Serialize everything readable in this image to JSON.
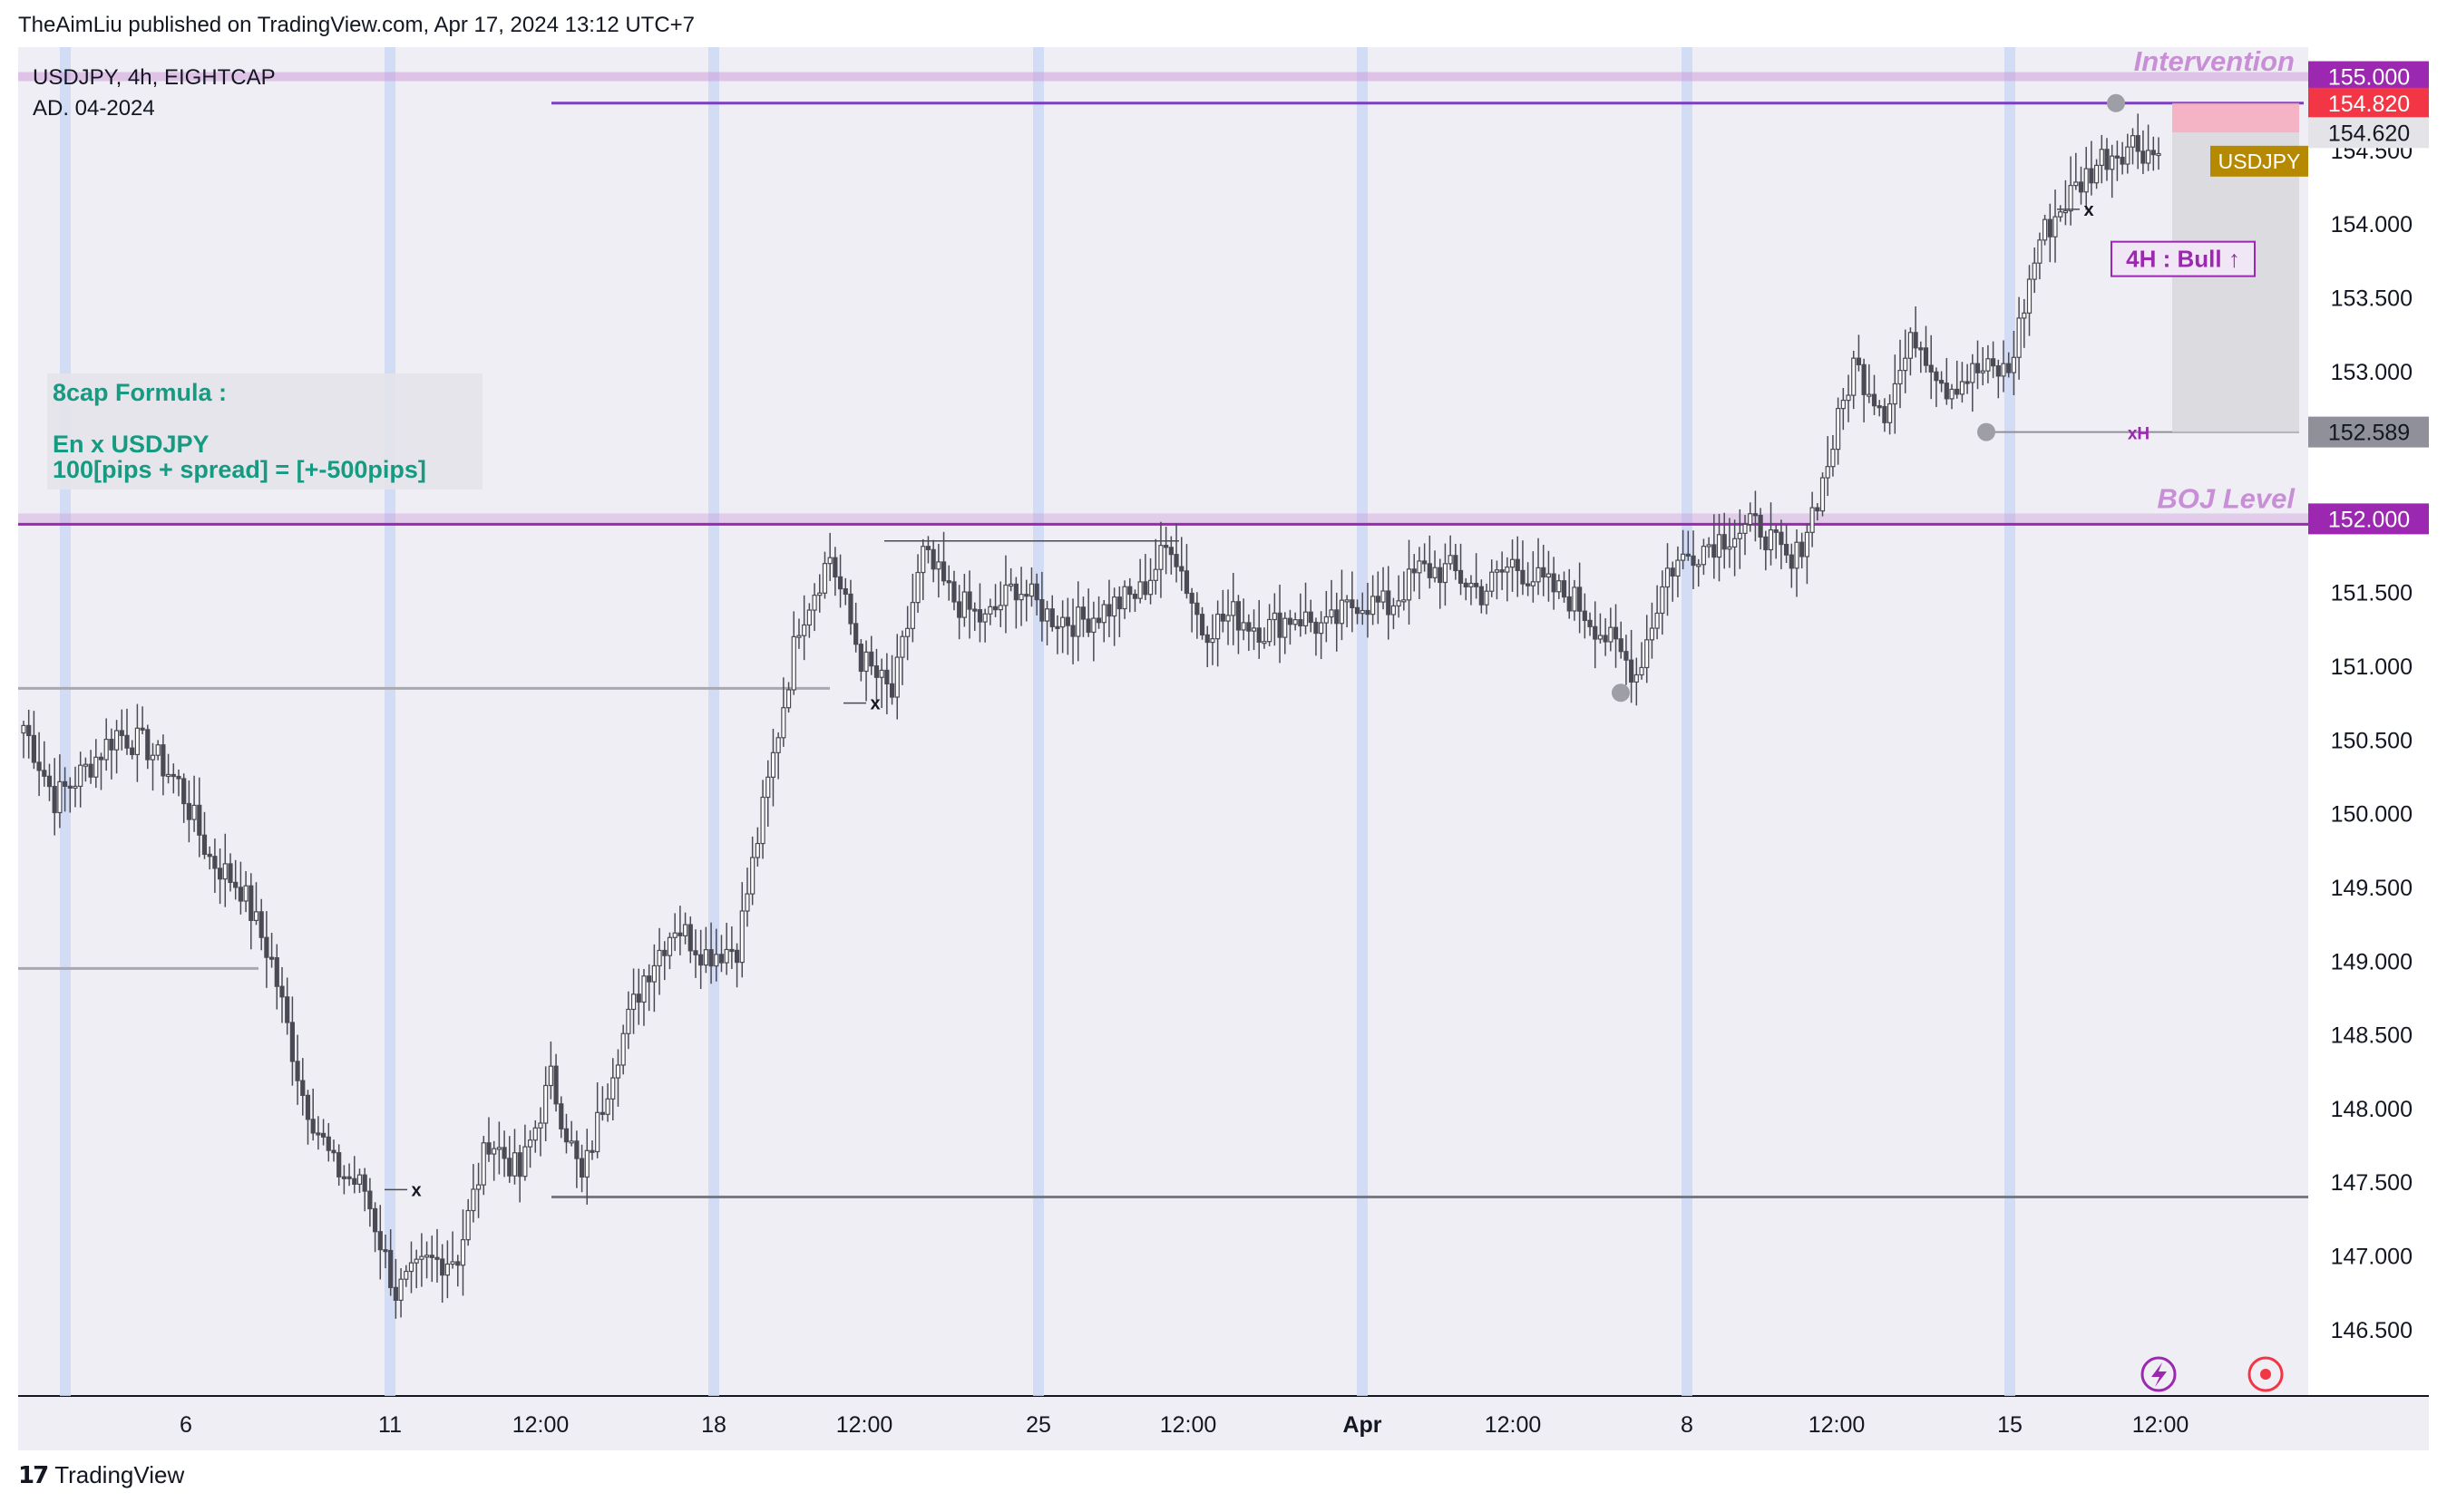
{
  "header": {
    "text": "TheAimLiu published on TradingView.com, Apr 17, 2024 13:12 UTC+7"
  },
  "footer": {
    "brand": "TradingView"
  },
  "colors": {
    "plot_bg": "#efeef4",
    "bar_up": "#ffffff",
    "bar_down": "#4a4a55",
    "intervention": "#c98fd6",
    "boj": "#9c27b0",
    "green_text": "#169a82",
    "tag_purple": "#9c27b0",
    "tag_red": "#f23645",
    "tag_gold": "#b58900",
    "session_band": "#cdd8f5"
  },
  "chart_data": {
    "type": "candlestick",
    "symbol_line": "USDJPY, 4h, EIGHTCAP",
    "sub_line": "AD. 04-2024",
    "ylim": [
      146.05,
      155.2
    ],
    "y_ticks": [
      "155.000",
      "154.500",
      "154.000",
      "153.500",
      "153.000",
      "152.500",
      "152.000",
      "151.500",
      "151.000",
      "150.500",
      "150.000",
      "149.500",
      "149.000",
      "148.500",
      "148.000",
      "147.500",
      "147.000",
      "146.500"
    ],
    "x_ticks": [
      {
        "label": "6",
        "bold": false
      },
      {
        "label": "11",
        "bold": false
      },
      {
        "label": "12:00",
        "bold": false
      },
      {
        "label": "18",
        "bold": false
      },
      {
        "label": "12:00",
        "bold": false
      },
      {
        "label": "25",
        "bold": false
      },
      {
        "label": "12:00",
        "bold": false
      },
      {
        "label": "Apr",
        "bold": true
      },
      {
        "label": "12:00",
        "bold": false
      },
      {
        "label": "8",
        "bold": false
      },
      {
        "label": "12:00",
        "bold": false
      },
      {
        "label": "15",
        "bold": false
      },
      {
        "label": "12:00",
        "bold": false
      }
    ],
    "price_tags": [
      {
        "label": "155.000",
        "value": 155.0,
        "style": "purple"
      },
      {
        "label": "154.820",
        "value": 154.82,
        "style": "red"
      },
      {
        "label": "154.620",
        "value": 154.62,
        "style": "light"
      },
      {
        "label": "152.589",
        "value": 152.589,
        "style": "gray"
      },
      {
        "label": "152.000",
        "value": 152.0,
        "style": "purple"
      }
    ],
    "annotations": {
      "intervention_label": "Intervention",
      "boj_label": "BOJ Level",
      "bull_label": "4H : Bull ↑",
      "symbol_tag": "USDJPY",
      "xh_label": "xH",
      "x_marks": [
        "x",
        "x",
        "x"
      ],
      "formula_title": "8cap Formula :",
      "formula_line1": "En x USDJPY",
      "formula_line2": "100[pips + spread] = [+-500pips]"
    },
    "levels": {
      "intervention": 155.0,
      "boj": 152.0,
      "upper_line": 154.82,
      "lower_line": 147.4,
      "stop_line": 152.589,
      "left_line_1": 150.85,
      "left_line_2": 148.95
    },
    "path": [
      150.6,
      150.1,
      150.3,
      150.55,
      150.45,
      150.2,
      149.7,
      149.5,
      149.0,
      148.1,
      147.6,
      147.45,
      146.75,
      146.95,
      147.0,
      147.8,
      147.55,
      148.2,
      147.5,
      148.3,
      148.9,
      149.25,
      149.05,
      149.1,
      150.2,
      151.3,
      151.75,
      151.05,
      150.8,
      151.75,
      151.45,
      151.3,
      151.55,
      151.35,
      151.3,
      151.4,
      151.5,
      151.85,
      151.25,
      151.35,
      151.25,
      151.35,
      151.25,
      151.45,
      151.4,
      151.65,
      151.65,
      151.5,
      151.7,
      151.55,
      151.45,
      151.2,
      150.95,
      151.65,
      151.8,
      151.9,
      151.95,
      151.65,
      152.25,
      153.05,
      152.75,
      153.25,
      152.9,
      153.0,
      153.0,
      153.9,
      154.2,
      154.45,
      154.55,
      154.45
    ]
  }
}
